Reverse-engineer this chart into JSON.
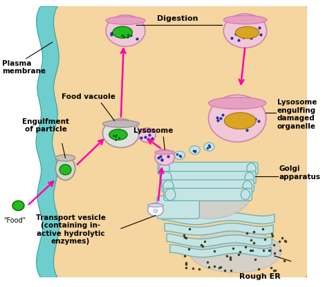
{
  "bg_color": "#F5D5A0",
  "plasma_membrane_color": "#6ECECE",
  "arrow_color": "#FF00AA",
  "golgi_color": "#C5E5E5",
  "golgi_edge": "#70B0B0",
  "er_color": "#C5E5E5",
  "er_edge": "#70B0B0",
  "lysosome_fill": "#F0C8D8",
  "lysosome_rim": "#E8A0C0",
  "lysosome_edge": "#D080B0",
  "vacuole_fill": "#E0E0E0",
  "vacuole_rim": "#C0B8B8",
  "vacuole_edge": "#A09090",
  "dot_color": "#2030AA",
  "green_fill": "#22BB22",
  "green_edge": "#006600",
  "gold_fill": "#DAA520",
  "gold_edge": "#AA7010",
  "labels": {
    "plasma_membrane": "Plasma\nmembrane",
    "food": "\"Food\"",
    "engulfment": "Engulfment\nof particle",
    "food_vacuole": "Food vacuole",
    "transport_vesicle": "Transport vesicle\n(containing in-\nactive hydrolytic\nenzymes)",
    "lysosome": "Lysosome",
    "digestion": "Digestion",
    "lysosome_engulfing": "Lysosome\nengulfing\ndamaged\norganelle",
    "golgi": "Golgi\napparatus",
    "rough_er": "Rough ER"
  }
}
